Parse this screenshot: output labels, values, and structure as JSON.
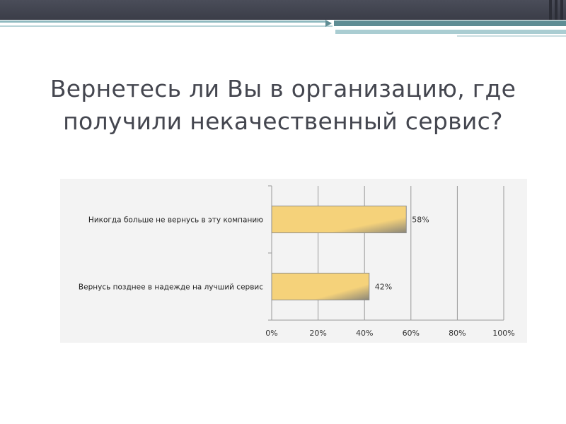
{
  "slide": {
    "title_line1": "Вернетесь ли Вы в организацию, где",
    "title_line2": "получили некачественный сервис?"
  },
  "chart_data": {
    "type": "bar",
    "orientation": "horizontal",
    "categories": [
      "Никогда больше  не вернусь в эту компанию",
      "Вернусь позднее в надежде  на лучший сервис"
    ],
    "values": [
      58,
      42
    ],
    "value_labels": [
      "58%",
      "42%"
    ],
    "x_ticks": [
      "0%",
      "20%",
      "40%",
      "60%",
      "80%",
      "100%"
    ],
    "xlim": [
      0,
      100
    ],
    "grid": true,
    "legend": "none",
    "bar_color": "#f5d27a"
  }
}
